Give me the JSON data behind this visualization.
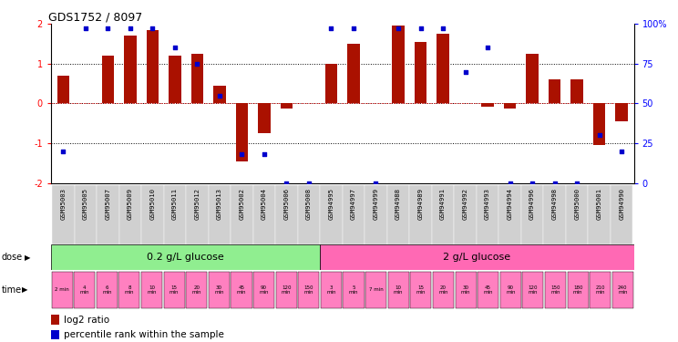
{
  "title": "GDS1752 / 8097",
  "samples": [
    "GSM95003",
    "GSM95005",
    "GSM95007",
    "GSM95009",
    "GSM95010",
    "GSM95011",
    "GSM95012",
    "GSM95013",
    "GSM95002",
    "GSM95004",
    "GSM95006",
    "GSM95008",
    "GSM94995",
    "GSM94997",
    "GSM94999",
    "GSM94988",
    "GSM94989",
    "GSM94991",
    "GSM94992",
    "GSM94993",
    "GSM94994",
    "GSM94996",
    "GSM94998",
    "GSM95000",
    "GSM95001",
    "GSM94990"
  ],
  "log2_ratio": [
    0.7,
    0.0,
    1.2,
    1.7,
    1.85,
    1.2,
    1.25,
    0.45,
    -1.45,
    -0.75,
    -0.12,
    0.0,
    1.0,
    1.5,
    0.0,
    1.95,
    1.55,
    1.75,
    0.0,
    -0.08,
    -0.12,
    1.25,
    0.6,
    0.6,
    -1.05,
    -0.45
  ],
  "percentile": [
    20,
    97,
    97,
    97,
    97,
    85,
    75,
    55,
    18,
    18,
    0,
    0,
    97,
    97,
    0,
    97,
    97,
    97,
    70,
    85,
    0,
    0,
    0,
    0,
    30,
    20
  ],
  "dose_groups": [
    {
      "label": "0.2 g/L glucose",
      "start": 0,
      "end": 12,
      "color": "#90EE90"
    },
    {
      "label": "2 g/L glucose",
      "start": 12,
      "end": 26,
      "color": "#FF69B4"
    }
  ],
  "time_labels": [
    "2 min",
    "4\nmin",
    "6\nmin",
    "8\nmin",
    "10\nmin",
    "15\nmin",
    "20\nmin",
    "30\nmin",
    "45\nmin",
    "90\nmin",
    "120\nmin",
    "150\nmin",
    "3\nmin",
    "5\nmin",
    "7 min",
    "10\nmin",
    "15\nmin",
    "20\nmin",
    "30\nmin",
    "45\nmin",
    "90\nmin",
    "120\nmin",
    "150\nmin",
    "180\nmin",
    "210\nmin",
    "240\nmin"
  ],
  "bar_color": "#AA1100",
  "dot_color": "#0000CC",
  "ylim_left": [
    -2,
    2
  ],
  "ylim_right": [
    0,
    100
  ],
  "bg_color": "#FFFFFF",
  "label_bg": "#D0D0D0",
  "time_color_02": "#FFB6D9",
  "time_color_2": "#FFB6D9",
  "dose_color_02": "#90EE90",
  "dose_color_2": "#FF69B4"
}
